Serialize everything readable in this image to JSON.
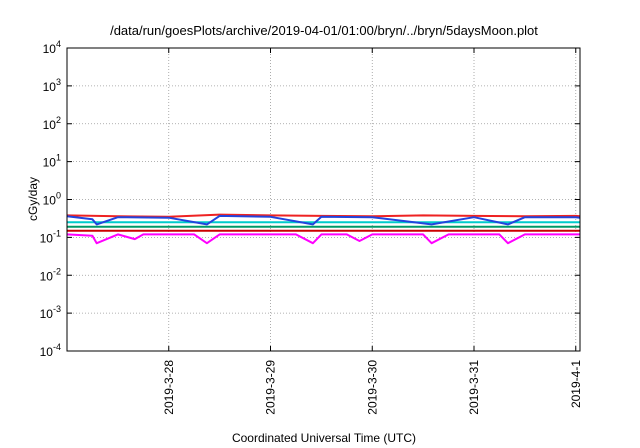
{
  "chart_data": {
    "type": "line",
    "title": "/data/run/goesPlots/archive/2019-04-01/01:00/bryn/../bryn/5daysMoon.plot",
    "xlabel": "Coordinated Universal Time (UTC)",
    "ylabel": "cGy/day",
    "yscale": "log",
    "ylim": [
      0.0001,
      10000
    ],
    "xlim": [
      "2019-03-27T00:00",
      "2019-04-01T01:00"
    ],
    "grid": true,
    "y_ticks": [
      {
        "base": "10",
        "exp": "-4",
        "value": 0.0001
      },
      {
        "base": "10",
        "exp": "-3",
        "value": 0.001
      },
      {
        "base": "10",
        "exp": "-2",
        "value": 0.01
      },
      {
        "base": "10",
        "exp": "-1",
        "value": 0.1
      },
      {
        "base": "10",
        "exp": "0",
        "value": 1
      },
      {
        "base": "10",
        "exp": "1",
        "value": 10
      },
      {
        "base": "10",
        "exp": "2",
        "value": 100
      },
      {
        "base": "10",
        "exp": "3",
        "value": 1000
      },
      {
        "base": "10",
        "exp": "4",
        "value": 10000
      }
    ],
    "x_ticks": [
      {
        "label": "2019-3-28",
        "value": "2019-03-28T00:00"
      },
      {
        "label": "2019-3-29",
        "value": "2019-03-29T00:00"
      },
      {
        "label": "2019-3-30",
        "value": "2019-03-30T00:00"
      },
      {
        "label": "2019-3-31",
        "value": "2019-03-31T00:00"
      },
      {
        "label": "2019-4-1",
        "value": "2019-04-01T00:00"
      }
    ],
    "series": [
      {
        "color": "#ff00ff",
        "x": [
          "2019-03-27T00:00",
          "2019-03-27T06:00",
          "2019-03-27T07:00",
          "2019-03-27T12:00",
          "2019-03-27T16:00",
          "2019-03-27T18:00",
          "2019-03-28T00:00",
          "2019-03-28T06:00",
          "2019-03-28T09:00",
          "2019-03-28T12:00",
          "2019-03-28T18:00",
          "2019-03-29T00:00",
          "2019-03-29T06:00",
          "2019-03-29T10:00",
          "2019-03-29T12:00",
          "2019-03-29T18:00",
          "2019-03-29T21:00",
          "2019-03-30T00:00",
          "2019-03-30T06:00",
          "2019-03-30T12:00",
          "2019-03-30T14:00",
          "2019-03-30T18:00",
          "2019-03-31T00:00",
          "2019-03-31T06:00",
          "2019-03-31T08:00",
          "2019-03-31T12:00",
          "2019-03-31T18:00",
          "2019-04-01T00:00",
          "2019-04-01T01:00"
        ],
        "values": [
          0.12,
          0.11,
          0.07,
          0.12,
          0.09,
          0.12,
          0.12,
          0.12,
          0.07,
          0.12,
          0.12,
          0.12,
          0.12,
          0.07,
          0.12,
          0.12,
          0.08,
          0.12,
          0.12,
          0.12,
          0.07,
          0.12,
          0.12,
          0.12,
          0.07,
          0.12,
          0.12,
          0.12,
          0.12
        ]
      },
      {
        "color": "#cc0000",
        "x": [
          "2019-03-27T00:00",
          "2019-03-27T12:00",
          "2019-03-28T00:00",
          "2019-03-28T12:00",
          "2019-03-29T00:00",
          "2019-03-29T12:00",
          "2019-03-30T00:00",
          "2019-03-30T12:00",
          "2019-03-31T00:00",
          "2019-03-31T12:00",
          "2019-04-01T00:00",
          "2019-04-01T01:00"
        ],
        "values": [
          0.15,
          0.15,
          0.15,
          0.15,
          0.15,
          0.15,
          0.15,
          0.15,
          0.15,
          0.15,
          0.15,
          0.15
        ]
      },
      {
        "color": "#009966",
        "x": [
          "2019-03-27T00:00",
          "2019-03-27T12:00",
          "2019-03-28T00:00",
          "2019-03-28T12:00",
          "2019-03-29T00:00",
          "2019-03-29T12:00",
          "2019-03-30T00:00",
          "2019-03-30T12:00",
          "2019-03-31T00:00",
          "2019-03-31T12:00",
          "2019-04-01T00:00",
          "2019-04-01T01:00"
        ],
        "values": [
          0.19,
          0.19,
          0.19,
          0.19,
          0.19,
          0.19,
          0.19,
          0.19,
          0.19,
          0.19,
          0.19,
          0.19
        ]
      },
      {
        "color": "#00cccc",
        "x": [
          "2019-03-27T00:00",
          "2019-03-27T12:00",
          "2019-03-28T00:00",
          "2019-03-28T12:00",
          "2019-03-29T00:00",
          "2019-03-29T12:00",
          "2019-03-30T00:00",
          "2019-03-30T12:00",
          "2019-03-31T00:00",
          "2019-03-31T12:00",
          "2019-04-01T00:00",
          "2019-04-01T01:00"
        ],
        "values": [
          0.25,
          0.25,
          0.25,
          0.25,
          0.25,
          0.25,
          0.25,
          0.25,
          0.25,
          0.25,
          0.25,
          0.25
        ]
      },
      {
        "color": "#ee2222",
        "x": [
          "2019-03-27T00:00",
          "2019-03-27T12:00",
          "2019-03-28T00:00",
          "2019-03-28T12:00",
          "2019-03-29T00:00",
          "2019-03-29T12:00",
          "2019-03-30T00:00",
          "2019-03-30T12:00",
          "2019-03-31T00:00",
          "2019-03-31T12:00",
          "2019-04-01T00:00",
          "2019-04-01T01:00"
        ],
        "values": [
          0.38,
          0.36,
          0.35,
          0.4,
          0.38,
          0.37,
          0.36,
          0.38,
          0.37,
          0.36,
          0.37,
          0.36
        ]
      },
      {
        "color": "#2244dd",
        "x": [
          "2019-03-27T00:00",
          "2019-03-27T06:00",
          "2019-03-27T07:00",
          "2019-03-27T12:00",
          "2019-03-28T00:00",
          "2019-03-28T09:00",
          "2019-03-28T12:00",
          "2019-03-29T00:00",
          "2019-03-29T10:00",
          "2019-03-29T12:00",
          "2019-03-30T00:00",
          "2019-03-30T14:00",
          "2019-03-31T00:00",
          "2019-03-31T08:00",
          "2019-03-31T12:00",
          "2019-04-01T00:00",
          "2019-04-01T01:00"
        ],
        "values": [
          0.36,
          0.3,
          0.22,
          0.34,
          0.33,
          0.22,
          0.37,
          0.35,
          0.22,
          0.35,
          0.34,
          0.22,
          0.34,
          0.22,
          0.34,
          0.34,
          0.33
        ]
      }
    ]
  }
}
